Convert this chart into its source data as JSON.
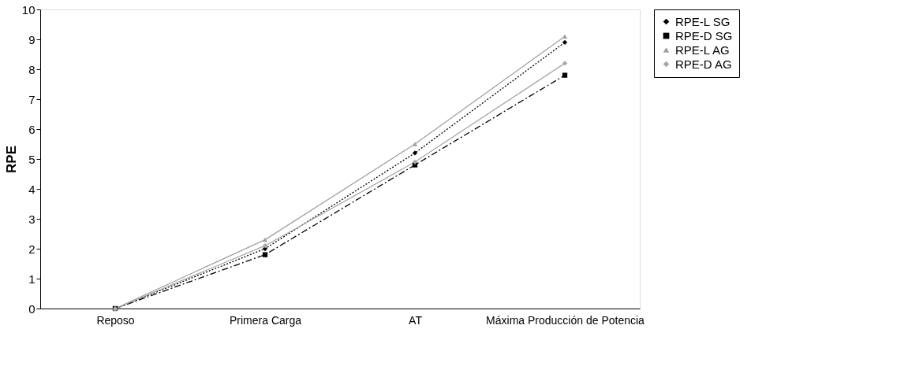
{
  "chart_data": {
    "type": "line",
    "ylabel": "RPE",
    "categories": [
      "Reposo",
      "Primera Carga",
      "AT",
      "Máxima Producción de Potencia"
    ],
    "ylim": [
      0,
      10
    ],
    "yticks": [
      0,
      1,
      2,
      3,
      4,
      5,
      6,
      7,
      8,
      9,
      10
    ],
    "grid": false,
    "legend": "right",
    "series": [
      {
        "name": "RPE-L SG",
        "color": "#000000",
        "marker": "diamond",
        "line_style": "dotted",
        "values": [
          0,
          2.0,
          5.2,
          8.9
        ]
      },
      {
        "name": "RPE-D SG",
        "color": "#000000",
        "marker": "square",
        "line_style": "dashed",
        "values": [
          0,
          1.8,
          4.8,
          7.8
        ]
      },
      {
        "name": "RPE-L AG",
        "color": "#a0a0a0",
        "marker": "triangle",
        "line_style": "solid",
        "values": [
          0,
          2.3,
          5.5,
          9.1
        ]
      },
      {
        "name": "RPE-D AG",
        "color": "#a8a8a8",
        "marker": "diamond",
        "line_style": "solid",
        "values": [
          0,
          2.1,
          4.9,
          8.2
        ]
      }
    ]
  }
}
